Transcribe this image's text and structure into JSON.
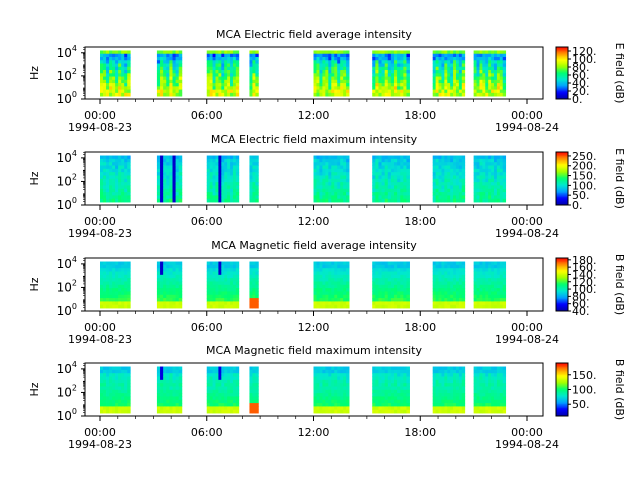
{
  "chart_data": [
    {
      "type": "heatmap",
      "title": "MCA  Electric field average intensity",
      "ylabel": "Hz",
      "y_scale": "log",
      "y_ticks": [
        {
          "value": 1,
          "base": "10",
          "exp": "0"
        },
        {
          "value": 100,
          "base": "10",
          "exp": "2"
        },
        {
          "value": 10000,
          "base": "10",
          "exp": "4"
        }
      ],
      "xlim": [
        "1994-08-23 00:00",
        "1994-08-24 00:00"
      ],
      "x_ticks": [
        "00:00",
        "06:00",
        "12:00",
        "18:00",
        "00:00"
      ],
      "x_date_labels": [
        "1994-08-23",
        "1994-08-24"
      ],
      "colorbar_label": "E field (dB)",
      "colorbar_ticks": [
        "0.",
        "20.",
        "40.",
        "60.",
        "80.",
        "100.",
        "120."
      ],
      "colorbar_range": [
        0,
        130
      ],
      "data_intervals_utc_hours": [
        [
          0.0,
          1.7
        ],
        [
          3.2,
          4.6
        ],
        [
          6.0,
          7.8
        ],
        [
          8.4,
          8.9
        ],
        [
          12.0,
          14.0
        ],
        [
          15.3,
          17.4
        ],
        [
          18.7,
          20.5
        ],
        [
          21.0,
          22.8
        ]
      ]
    },
    {
      "type": "heatmap",
      "title": "MCA  Electric field maximum intensity",
      "ylabel": "Hz",
      "y_scale": "log",
      "y_ticks": [
        {
          "value": 1,
          "base": "10",
          "exp": "0"
        },
        {
          "value": 100,
          "base": "10",
          "exp": "2"
        },
        {
          "value": 10000,
          "base": "10",
          "exp": "4"
        }
      ],
      "xlim": [
        "1994-08-23 00:00",
        "1994-08-24 00:00"
      ],
      "x_ticks": [
        "00:00",
        "06:00",
        "12:00",
        "18:00",
        "00:00"
      ],
      "x_date_labels": [
        "1994-08-23",
        "1994-08-24"
      ],
      "colorbar_label": "E field (dB)",
      "colorbar_ticks": [
        "0.",
        "50.",
        "100.",
        "150.",
        "200.",
        "250."
      ],
      "colorbar_range": [
        0,
        270
      ],
      "data_intervals_utc_hours": [
        [
          0.0,
          1.7
        ],
        [
          3.2,
          4.6
        ],
        [
          6.0,
          7.8
        ],
        [
          8.4,
          8.9
        ],
        [
          12.0,
          14.0
        ],
        [
          15.3,
          17.4
        ],
        [
          18.7,
          20.5
        ],
        [
          21.0,
          22.8
        ]
      ]
    },
    {
      "type": "heatmap",
      "title": "MCA  Magnetic field average intensity",
      "ylabel": "Hz",
      "y_scale": "log",
      "y_ticks": [
        {
          "value": 1,
          "base": "10",
          "exp": "0"
        },
        {
          "value": 100,
          "base": "10",
          "exp": "2"
        },
        {
          "value": 10000,
          "base": "10",
          "exp": "4"
        }
      ],
      "xlim": [
        "1994-08-23 00:00",
        "1994-08-24 00:00"
      ],
      "x_ticks": [
        "00:00",
        "06:00",
        "12:00",
        "18:00",
        "00:00"
      ],
      "x_date_labels": [
        "1994-08-23",
        "1994-08-24"
      ],
      "colorbar_label": "B field (dB)",
      "colorbar_ticks": [
        "40.",
        "60.",
        "80.",
        "100.",
        "120.",
        "140.",
        "160.",
        "180."
      ],
      "colorbar_range": [
        40,
        185
      ],
      "data_intervals_utc_hours": [
        [
          0.0,
          1.7
        ],
        [
          3.2,
          4.6
        ],
        [
          6.0,
          7.8
        ],
        [
          8.4,
          8.9
        ],
        [
          12.0,
          14.0
        ],
        [
          15.3,
          17.4
        ],
        [
          18.7,
          20.5
        ],
        [
          21.0,
          22.8
        ]
      ]
    },
    {
      "type": "heatmap",
      "title": "MCA  Magnetic field maximum intensity",
      "ylabel": "Hz",
      "y_scale": "log",
      "y_ticks": [
        {
          "value": 1,
          "base": "10",
          "exp": "0"
        },
        {
          "value": 100,
          "base": "10",
          "exp": "2"
        },
        {
          "value": 10000,
          "base": "10",
          "exp": "4"
        }
      ],
      "xlim": [
        "1994-08-23 00:00",
        "1994-08-24 00:00"
      ],
      "x_ticks": [
        "00:00",
        "06:00",
        "12:00",
        "18:00",
        "00:00"
      ],
      "x_date_labels": [
        "1994-08-23",
        "1994-08-24"
      ],
      "colorbar_label": "B field (dB)",
      "colorbar_ticks": [
        "50.",
        "100.",
        "150."
      ],
      "colorbar_range": [
        10,
        190
      ],
      "data_intervals_utc_hours": [
        [
          0.0,
          1.7
        ],
        [
          3.2,
          4.6
        ],
        [
          6.0,
          7.8
        ],
        [
          8.4,
          8.9
        ],
        [
          12.0,
          14.0
        ],
        [
          15.3,
          17.4
        ],
        [
          18.7,
          20.5
        ],
        [
          21.0,
          22.8
        ]
      ]
    }
  ],
  "colors": {
    "colormap": [
      "#0000aa",
      "#0000ff",
      "#00a0ff",
      "#00e8d0",
      "#00ff70",
      "#a0ff00",
      "#ffff00",
      "#ff9000",
      "#ff0000"
    ]
  }
}
